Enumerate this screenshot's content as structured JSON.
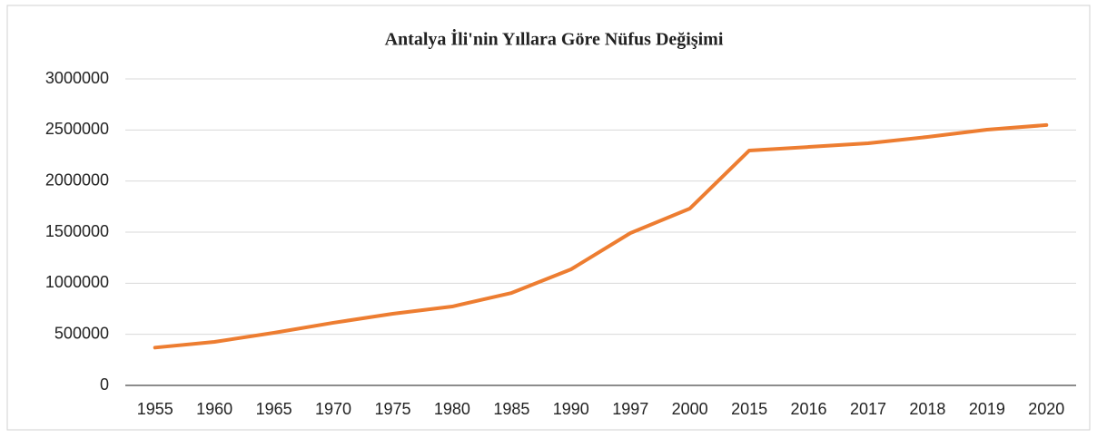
{
  "chart_data": {
    "type": "line",
    "title": "Antalya İli'nin Yıllara Göre Nüfus Değişimi",
    "categories": [
      "1955",
      "1960",
      "1965",
      "1970",
      "1975",
      "1980",
      "1985",
      "1990",
      "1997",
      "2000",
      "2015",
      "2016",
      "2017",
      "2018",
      "2019",
      "2020"
    ],
    "values": [
      370000,
      426000,
      515000,
      613000,
      701000,
      772000,
      905000,
      1136000,
      1491000,
      1731000,
      2299000,
      2334000,
      2370000,
      2432000,
      2503000,
      2548000
    ],
    "color": "#ed7d31",
    "ylim": [
      0,
      3000000
    ],
    "yticks": [
      0,
      500000,
      1000000,
      1500000,
      2000000,
      2500000,
      3000000
    ],
    "grid": true
  }
}
